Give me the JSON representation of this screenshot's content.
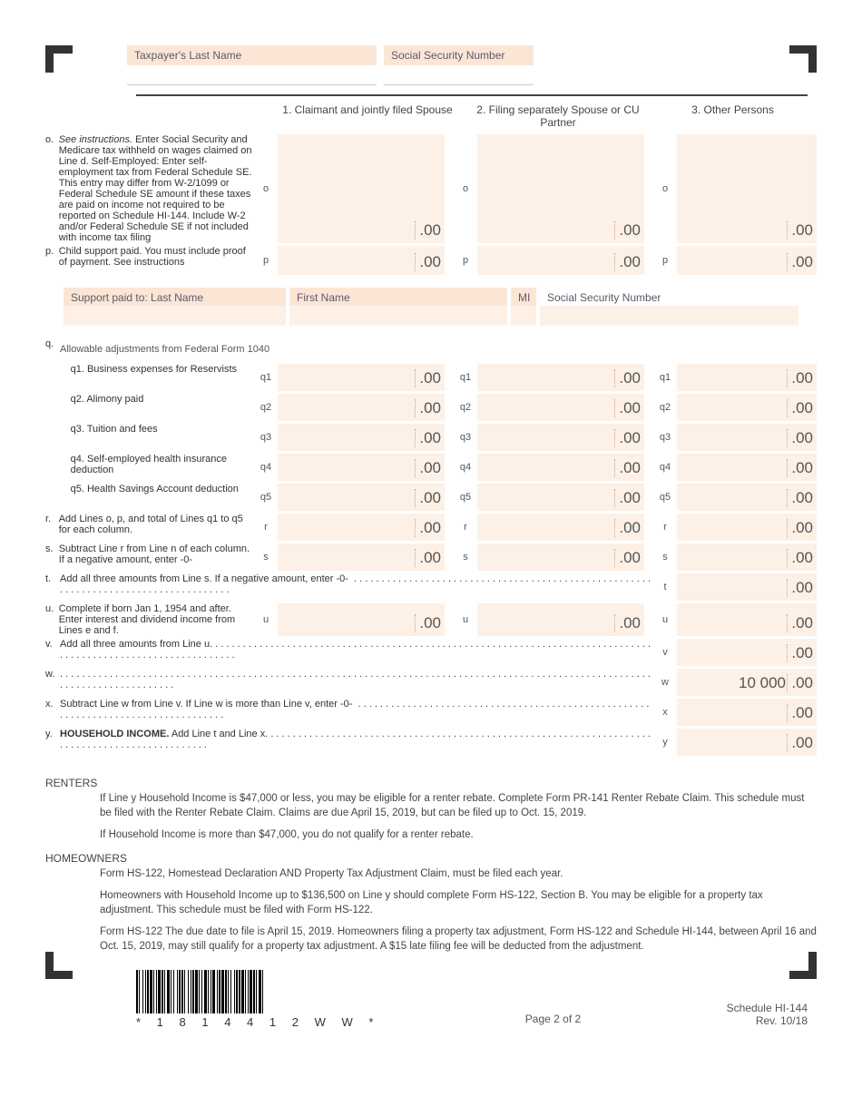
{
  "colors": {
    "peach_bg": "#fdf0e6",
    "peach_hdr": "#fbe6d6",
    "text": "#555555",
    "rule": "#444444"
  },
  "header": {
    "last_name_label": "Taxpayer's Last Name",
    "ssn_label": "Social Security Number"
  },
  "columns": {
    "c1": "1. Claimant and jointly filed Spouse",
    "c2": "2. Filing separately Spouse or CU Partner",
    "c3": "3. Other Persons"
  },
  "lines": {
    "o": {
      "letter": "o.",
      "text_before": "See instructions.",
      "text": " Enter Social Security and Medicare tax withheld on wages claimed on Line d.\nSelf-Employed: Enter self-employment tax from Federal Schedule SE. This entry may differ from W-2/1099 or Federal Schedule SE amount if these taxes are paid on income not required to be reported on Schedule HI-144. Include W-2 and/or Federal Schedule SE if not included with income tax filing",
      "tag": "o",
      "cents": ".00"
    },
    "p": {
      "letter": "p.",
      "text": "Child support paid. You must include proof of payment. See instructions",
      "tag": "p",
      "cents": ".00"
    },
    "q_title": {
      "letter": "q.",
      "text": "Allowable adjustments from Federal Form 1040"
    },
    "q1": {
      "text": "q1.  Business expenses for Reservists",
      "tag": "q1",
      "cents": ".00"
    },
    "q2": {
      "text": "q2.  Alimony paid",
      "tag": "q2",
      "cents": ".00"
    },
    "q3": {
      "text": "q3.  Tuition and fees",
      "tag": "q3",
      "cents": ".00"
    },
    "q4": {
      "text": "q4.  Self-employed health insurance deduction",
      "tag": "q4",
      "cents": ".00"
    },
    "q5": {
      "text": "q5.  Health Savings Account deduction",
      "tag": "q5",
      "cents": ".00"
    },
    "r": {
      "letter": "r.",
      "text": "Add Lines o, p, and total of Lines q1 to q5 for each column.",
      "tag": "r",
      "cents": ".00"
    },
    "s": {
      "letter": "s.",
      "text": "Subtract Line r from Line n of each column.\nIf a negative amount, enter -0-",
      "tag": "s",
      "cents": ".00"
    },
    "t": {
      "letter": "t.",
      "text": "Add all three amounts from Line s. If a negative amount, enter -0-",
      "tag": "t",
      "cents": ".00"
    },
    "u": {
      "letter": "u.",
      "text1": "Complete if born Jan 1, 1954 and after.",
      "text2": "Enter interest and dividend income from Lines e and f.",
      "tag": "u",
      "cents": ".00"
    },
    "v": {
      "letter": "v.",
      "text": "Add all three amounts from Line u",
      "tag": "v",
      "cents": ".00"
    },
    "w": {
      "letter": "w.",
      "text": "",
      "tag": "w",
      "val": "10 000",
      "cents": ".00"
    },
    "x": {
      "letter": "x.",
      "text": "Subtract Line w from Line v. If Line w is more than Line v, enter -0-",
      "tag": "x",
      "cents": ".00"
    },
    "y": {
      "letter": "y.",
      "bold": "HOUSEHOLD INCOME.",
      "text": " Add Line t and Line x",
      "tag": "y",
      "cents": ".00"
    }
  },
  "support": {
    "last": "Support paid to: Last Name",
    "first": "First Name",
    "mi": "MI",
    "ssn": "Social Security Number"
  },
  "notes": {
    "renters_hdr": "RENTERS",
    "renters_1": "If Line y Household Income is $47,000 or less, you may be eligible for a renter rebate. Complete Form PR-141 Renter Rebate Claim. This schedule must be filed with the Renter Rebate Claim. Claims are due April 15, 2019, but can be filed up to Oct. 15, 2019.",
    "renters_2": "If Household Income is more than $47,000, you do not qualify for a renter rebate.",
    "home_hdr": "HOMEOWNERS",
    "home_1": "Form HS-122, Homestead Declaration AND Property Tax Adjustment Claim, must be filed each year.",
    "home_2": "Homeowners with Household Income up to $136,500 on Line y should complete Form HS-122, Section B. You may be eligible for a property tax adjustment. This schedule must be filed with Form HS-122.",
    "home_3": "Form HS-122 The due date to file is April 15, 2019. Homeowners filing a property tax adjustment, Form HS-122 and Schedule HI-144, between April 16 and Oct. 15, 2019, may still qualify for a property tax adjustment.  A $15 late filing fee will be deducted from the adjustment."
  },
  "footer": {
    "barcode_text": "* 1 8 1 4 4 1 2 W W *",
    "page": "Page 2 of 2",
    "schedule": "Schedule HI-144",
    "rev": "Rev. 10/18"
  }
}
